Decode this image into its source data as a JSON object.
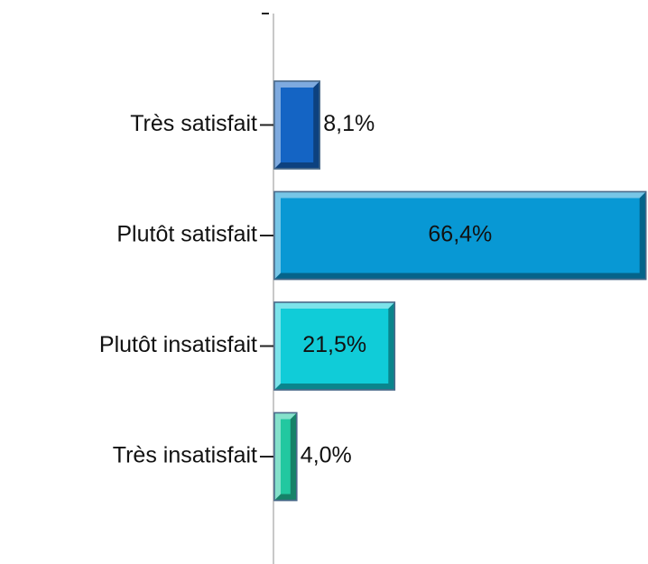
{
  "chart_data": {
    "type": "bar",
    "orientation": "horizontal",
    "categories": [
      "Très satisfait",
      "Plutôt satisfait",
      "Plutôt insatisfait",
      "Très insatisfait"
    ],
    "values": [
      8.1,
      66.4,
      21.5,
      4.0
    ],
    "value_labels": [
      "8,1%",
      "66,4%",
      "21,5%",
      "4,0%"
    ],
    "colors": [
      "#1464c4",
      "#0898d4",
      "#10ccd8",
      "#22c8a0"
    ]
  }
}
